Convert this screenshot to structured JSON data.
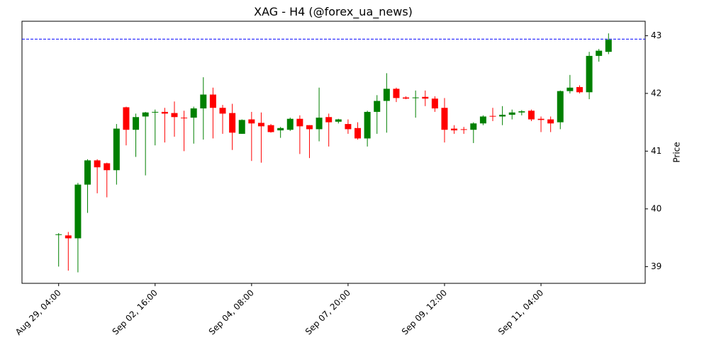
{
  "chart_data": {
    "type": "candlestick",
    "title": "XAG - H4 (@forex_ua_news)",
    "y_label": "Price",
    "y_axis_side": "right",
    "up_color": "#008000",
    "down_color": "#ff0000",
    "open": [
      39.55,
      39.54,
      39.49,
      40.42,
      40.84,
      40.79,
      40.67,
      41.76,
      41.37,
      41.6,
      41.67,
      41.68,
      41.66,
      41.58,
      41.58,
      41.74,
      41.98,
      41.75,
      41.66,
      41.3,
      41.55,
      41.49,
      41.45,
      41.36,
      41.37,
      41.56,
      41.45,
      41.38,
      41.59,
      41.51,
      41.47,
      41.4,
      41.22,
      41.68,
      41.87,
      42.08,
      41.93,
      41.92,
      41.94,
      41.91,
      41.75,
      41.39,
      41.38,
      41.37,
      41.48,
      41.61,
      41.6,
      41.63,
      41.67,
      41.7,
      41.56,
      41.55,
      41.5,
      42.04,
      42.11,
      42.02,
      42.65,
      42.72
    ],
    "high": [
      39.58,
      39.6,
      40.45,
      40.86,
      40.86,
      40.8,
      41.47,
      41.77,
      41.65,
      41.68,
      41.72,
      41.75,
      41.86,
      41.7,
      41.77,
      42.28,
      42.1,
      41.8,
      41.82,
      41.55,
      41.68,
      41.67,
      41.47,
      41.42,
      41.58,
      41.62,
      41.45,
      42.1,
      41.65,
      41.56,
      41.55,
      41.5,
      41.7,
      41.97,
      42.35,
      42.1,
      41.95,
      42.05,
      42.05,
      41.95,
      41.92,
      41.45,
      41.42,
      41.5,
      41.62,
      41.75,
      41.78,
      41.72,
      41.71,
      41.72,
      41.6,
      41.6,
      42.05,
      42.32,
      42.14,
      42.72,
      42.77,
      43.04
    ],
    "low": [
      39.0,
      38.93,
      38.9,
      39.93,
      40.27,
      40.2,
      40.42,
      41.1,
      40.9,
      40.58,
      41.1,
      41.15,
      41.25,
      41.0,
      41.13,
      41.2,
      41.22,
      41.3,
      41.02,
      41.3,
      40.83,
      40.8,
      41.32,
      41.23,
      41.35,
      40.95,
      40.88,
      41.17,
      41.08,
      41.48,
      41.3,
      41.2,
      41.08,
      41.3,
      41.32,
      41.85,
      41.9,
      41.58,
      41.78,
      41.68,
      41.15,
      41.3,
      41.3,
      41.14,
      41.45,
      41.52,
      41.45,
      41.55,
      41.62,
      41.52,
      41.33,
      41.33,
      41.38,
      42.0,
      42.0,
      41.9,
      42.55,
      42.68
    ],
    "close": [
      39.56,
      39.49,
      40.42,
      40.84,
      40.72,
      40.67,
      41.39,
      41.37,
      41.59,
      41.67,
      41.68,
      41.65,
      41.59,
      41.57,
      41.74,
      41.98,
      41.75,
      41.65,
      41.32,
      41.54,
      41.48,
      41.43,
      41.33,
      41.4,
      41.56,
      41.43,
      41.38,
      41.58,
      41.5,
      41.55,
      41.38,
      41.22,
      41.68,
      41.87,
      42.08,
      41.92,
      41.91,
      41.93,
      41.91,
      41.74,
      41.37,
      41.36,
      41.37,
      41.48,
      41.6,
      41.6,
      41.63,
      41.67,
      41.69,
      41.55,
      41.54,
      41.48,
      42.04,
      42.1,
      42.02,
      42.65,
      42.74,
      42.93
    ],
    "xlim": [
      -3.8,
      60.8
    ],
    "xticks": [
      {
        "value": 0,
        "label": "Aug 29, 04:00"
      },
      {
        "value": 10,
        "label": "Sep 02, 16:00"
      },
      {
        "value": 20,
        "label": "Sep 04, 08:00"
      },
      {
        "value": 30,
        "label": "Sep 07, 20:00"
      },
      {
        "value": 40,
        "label": "Sep 09, 12:00"
      },
      {
        "value": 50,
        "label": "Sep 11, 04:00"
      }
    ],
    "ylim": [
      38.71,
      43.25
    ],
    "yticks": [
      39,
      40,
      41,
      42,
      43
    ],
    "hline": {
      "value": 42.94,
      "color": "#0000ff"
    }
  }
}
